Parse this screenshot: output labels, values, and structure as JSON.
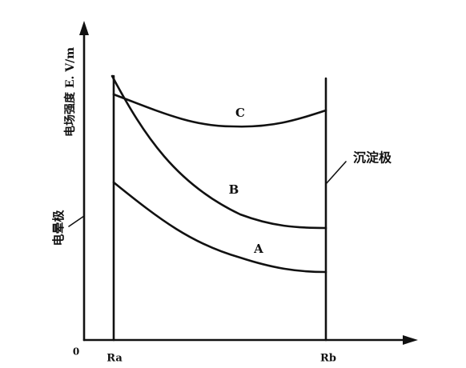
{
  "diagram": {
    "y_axis_label": "电场强度 E. V/m",
    "origin_label": "0",
    "electrodes": {
      "inner": "电晕极",
      "outer": "沉淀极"
    },
    "radius_labels": [
      "Ra",
      "Rb"
    ],
    "curves": [
      {
        "label": "C"
      },
      {
        "label": "B"
      },
      {
        "label": "A"
      }
    ]
  }
}
